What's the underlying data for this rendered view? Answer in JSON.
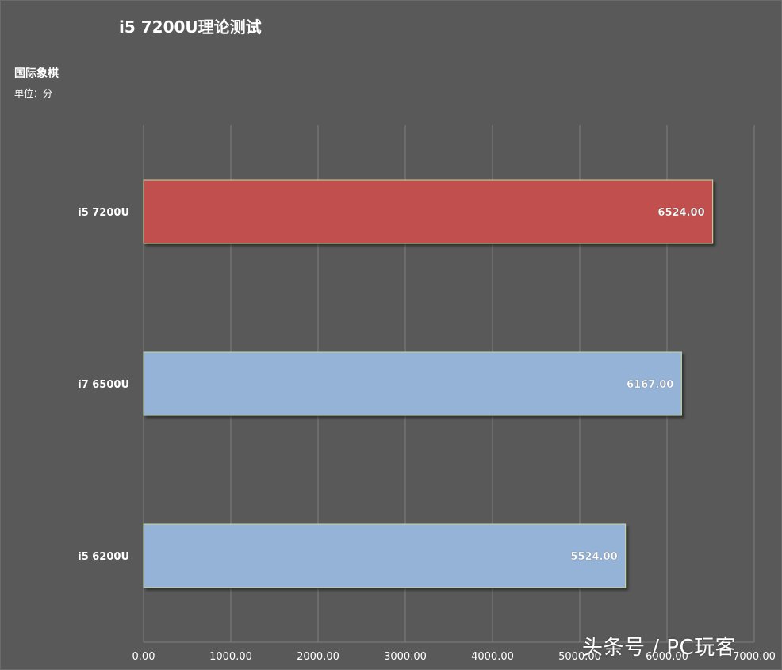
{
  "chart_data": {
    "type": "bar",
    "orientation": "horizontal",
    "title": "i5 7200U理论测试",
    "subtitle": "国际象棋",
    "unit": "单位：分",
    "categories": [
      "i5 7200U",
      "i7 6500U",
      "i5 6200U"
    ],
    "values": [
      6524.0,
      6167.0,
      5524.0
    ],
    "value_labels": [
      "6524.00",
      "6167.00",
      "5524.00"
    ],
    "bar_colors": [
      "#c0504d",
      "#95b3d7",
      "#95b3d7"
    ],
    "xlim": [
      0,
      7000
    ],
    "xticks": [
      0,
      1000,
      2000,
      3000,
      4000,
      5000,
      6000,
      7000
    ],
    "xtick_labels": [
      "0.00",
      "1000.00",
      "2000.00",
      "3000.00",
      "4000.00",
      "5000.00",
      "6000.00",
      "7000.00"
    ],
    "grid": true,
    "legend": "none"
  },
  "watermark": "头条号 / PC玩客",
  "colors": {
    "background": "#595959",
    "grid": "#7f7f7f",
    "text": "#ffffff"
  }
}
